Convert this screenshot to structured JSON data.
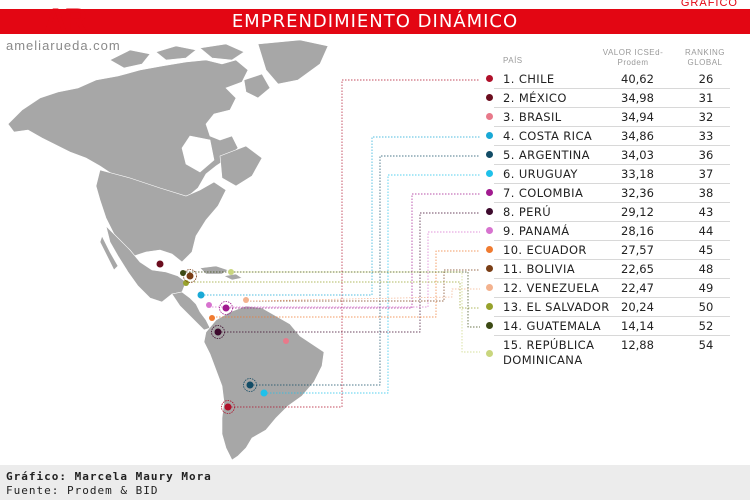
{
  "header": {
    "logo_a": "A",
    "logo_r": "R",
    "title": "EMPRENDIMIENTO DINÁMICO",
    "tag": "GRÁFICO",
    "site": "ameliarueda.com"
  },
  "table": {
    "col_country": "PAÍS",
    "col_value": "VALOR ICSEd-Prodem",
    "col_rank": "RANKING GLOBAL",
    "rows": [
      {
        "country": "1. CHILE",
        "value": "40,62",
        "rank": "26",
        "color": "#b0102a"
      },
      {
        "country": "2. MÉXICO",
        "value": "34,98",
        "rank": "31",
        "color": "#6b0d1e"
      },
      {
        "country": "3. BRASIL",
        "value": "34,94",
        "rank": "32",
        "color": "#e8798a"
      },
      {
        "country": "4. COSTA RICA",
        "value": "34,86",
        "rank": "33",
        "color": "#19a9d6"
      },
      {
        "country": "5. ARGENTINA",
        "value": "34,03",
        "rank": "36",
        "color": "#124c66"
      },
      {
        "country": "6. URUGUAY",
        "value": "33,18",
        "rank": "37",
        "color": "#1fc1ea"
      },
      {
        "country": "7. COLOMBIA",
        "value": "32,36",
        "rank": "38",
        "color": "#a11a8f"
      },
      {
        "country": "8. PERÚ",
        "value": "29,12",
        "rank": "43",
        "color": "#3d0a2d"
      },
      {
        "country": "9. PANAMÁ",
        "value": "28,16",
        "rank": "44",
        "color": "#d773cf"
      },
      {
        "country": "10. ECUADOR",
        "value": "27,57",
        "rank": "45",
        "color": "#f07b30"
      },
      {
        "country": "11. BOLIVIA",
        "value": "22,65",
        "rank": "48",
        "color": "#7a3e16"
      },
      {
        "country": "12. VENEZUELA",
        "value": "22,47",
        "rank": "49",
        "color": "#f3b28e"
      },
      {
        "country": "13. EL SALVADOR",
        "value": "20,24",
        "rank": "50",
        "color": "#97a22c"
      },
      {
        "country": "14. GUATEMALA",
        "value": "14,14",
        "rank": "52",
        "color": "#3c4a14"
      },
      {
        "country": "15. REPÚBLICA",
        "country2": "DOMINICANA",
        "value": "12,88",
        "rank": "54",
        "color": "#c9d67e"
      }
    ]
  },
  "footer": {
    "credit": "Gráfico: Marcela Maury Mora",
    "source": "Fuente: Prodem & BID"
  }
}
